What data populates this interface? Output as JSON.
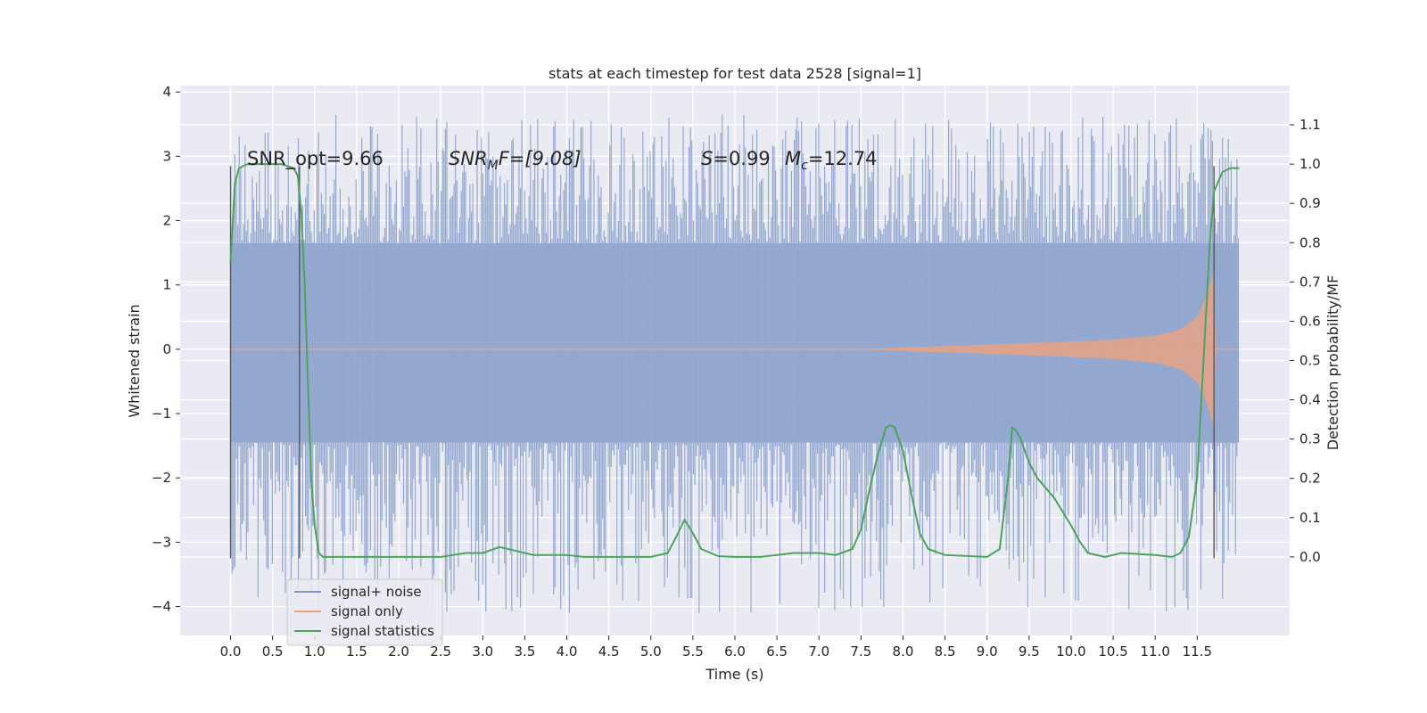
{
  "chart_data": {
    "type": "line",
    "title": "stats at each timestep for test data 2528 [signal=1]",
    "xlabel": "Time (s)",
    "ylabel": "Whitened strain",
    "y2label": "Detection probability/MF",
    "xlim": [
      -0.6,
      12.6
    ],
    "ylim": [
      -4.45,
      4.1
    ],
    "y2lim": [
      -0.2,
      1.2
    ],
    "x_ticks": [
      0.0,
      0.5,
      1.0,
      1.5,
      2.0,
      2.5,
      3.0,
      3.5,
      4.0,
      4.5,
      5.0,
      5.5,
      6.0,
      6.5,
      7.0,
      7.5,
      8.0,
      8.5,
      9.0,
      9.5,
      10.0,
      10.5,
      11.0,
      11.5
    ],
    "x_tick_labels": [
      "0.0",
      "0.5",
      "1.0",
      "1.5",
      "2.0",
      "2.5",
      "3.0",
      "3.5",
      "4.0",
      "4.5",
      "5.0",
      "5.5",
      "6.0",
      "6.5",
      "7.0",
      "7.5",
      "8.0",
      "8.5",
      "9.0",
      "9.5",
      "10.0",
      "10.5",
      "11.0",
      "11.5"
    ],
    "y_ticks": [
      -4,
      -3,
      -2,
      -1,
      0,
      1,
      2,
      3,
      4
    ],
    "y_tick_labels": [
      "−4",
      "−3",
      "−2",
      "−1",
      "0",
      "1",
      "2",
      "3",
      "4"
    ],
    "y2_ticks": [
      0.0,
      0.1,
      0.2,
      0.3,
      0.4,
      0.5,
      0.6,
      0.7,
      0.8,
      0.9,
      1.0,
      1.1
    ],
    "y2_tick_labels": [
      "0.0",
      "0.1",
      "0.2",
      "0.3",
      "0.4",
      "0.5",
      "0.6",
      "0.7",
      "0.8",
      "0.9",
      "1.0",
      "1.1"
    ],
    "grid": true,
    "legend_position": "lower-left",
    "legend": [
      {
        "label": "signal+ noise",
        "color": "#7f97c9"
      },
      {
        "label": "signal only",
        "color": "#e8a284"
      },
      {
        "label": "signal statistics",
        "color": "#4da35e"
      }
    ],
    "series": [
      {
        "name": "signal+ noise",
        "color": "#8fa5cf",
        "x_range": [
          0.0,
          11.99
        ],
        "envelope_upper": 1.65,
        "envelope_lower": -1.45,
        "peak_max": 3.65,
        "peak_min": -4.1
      },
      {
        "name": "signal only",
        "color": "#e8a284",
        "chirp_x": [
          0.0,
          7.5,
          8.0,
          9.0,
          10.0,
          10.5,
          11.0,
          11.3,
          11.5,
          11.6,
          11.7,
          11.72,
          11.99
        ],
        "chirp_amplitude": [
          0.0,
          0.0,
          0.03,
          0.07,
          0.12,
          0.15,
          0.21,
          0.31,
          0.5,
          0.8,
          1.2,
          0.0,
          0.0
        ]
      },
      {
        "name": "signal statistics",
        "color": "#4da35e",
        "axis": "right",
        "x": [
          0.0,
          0.05,
          0.1,
          0.2,
          0.4,
          0.6,
          0.75,
          0.8,
          0.84,
          0.88,
          0.92,
          0.96,
          1.0,
          1.05,
          1.1,
          1.5,
          2.0,
          2.5,
          2.8,
          3.0,
          3.2,
          3.4,
          3.6,
          4.0,
          4.2,
          4.5,
          5.0,
          5.2,
          5.3,
          5.4,
          5.5,
          5.6,
          5.8,
          6.0,
          6.3,
          6.5,
          6.7,
          7.0,
          7.2,
          7.4,
          7.5,
          7.6,
          7.7,
          7.8,
          7.85,
          7.9,
          8.0,
          8.1,
          8.2,
          8.3,
          8.5,
          9.0,
          9.15,
          9.25,
          9.3,
          9.35,
          9.4,
          9.5,
          9.6,
          9.8,
          10.0,
          10.1,
          10.2,
          10.4,
          10.6,
          11.0,
          11.2,
          11.3,
          11.4,
          11.5,
          11.55,
          11.6,
          11.65,
          11.7,
          11.8,
          11.9,
          12.0
        ],
        "y": [
          0.75,
          0.95,
          0.99,
          1.0,
          1.0,
          1.0,
          0.99,
          0.97,
          0.88,
          0.7,
          0.45,
          0.2,
          0.08,
          0.01,
          0.0,
          0.0,
          0.0,
          0.0,
          0.01,
          0.01,
          0.025,
          0.015,
          0.005,
          0.005,
          0.0,
          0.0,
          0.0,
          0.01,
          0.05,
          0.095,
          0.06,
          0.02,
          0.002,
          0.0,
          0.0,
          0.005,
          0.01,
          0.01,
          0.005,
          0.02,
          0.07,
          0.17,
          0.26,
          0.33,
          0.335,
          0.33,
          0.27,
          0.16,
          0.06,
          0.02,
          0.005,
          0.0,
          0.02,
          0.2,
          0.33,
          0.32,
          0.3,
          0.24,
          0.2,
          0.15,
          0.08,
          0.04,
          0.01,
          0.0,
          0.01,
          0.005,
          0.0,
          0.01,
          0.05,
          0.2,
          0.4,
          0.6,
          0.8,
          0.93,
          0.98,
          0.99,
          0.99
        ]
      }
    ],
    "markers_x": [
      0.0,
      0.82,
      11.7
    ]
  },
  "annotations": {
    "snr_opt": "SNR_opt=9.66",
    "snr_mf_base": "SNR",
    "snr_mf_sub": "M",
    "snr_mf_rest": "F=[9.08]",
    "s_var": "S",
    "s_val": "=0.99",
    "mc_var": "M",
    "mc_sub": "c",
    "mc_val": "=12.74"
  }
}
